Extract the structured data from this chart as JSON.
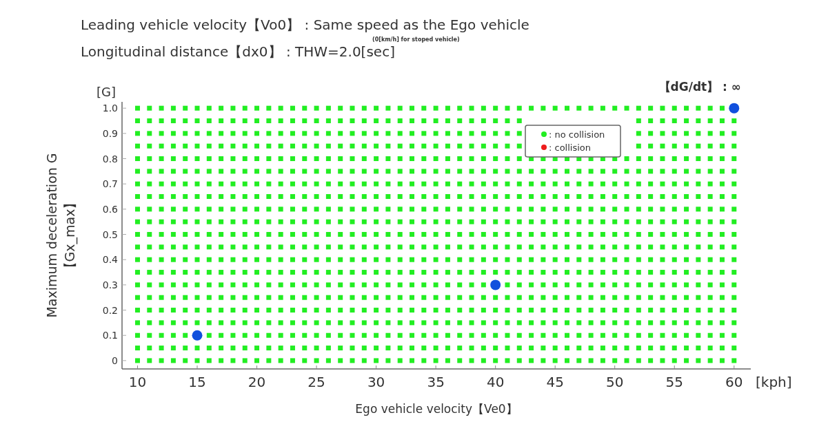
{
  "chart_data": {
    "type": "scatter",
    "title": "Leading vehicle velocity【Vo0】 : Same speed as the Ego vehicle",
    "subtitle": "Longitudinal distance【dx0】 : THW=2.0[sec]",
    "annotations": [
      "(0[km/h] for stoped vehicle)",
      "【dG/dt】 : ∞",
      "[G]",
      "[kph]"
    ],
    "xlabel": "Ego vehicle velocity【Ve0】",
    "ylabel": "Maximum deceleration G\n【Gx_max】",
    "x": [
      10,
      11,
      12,
      13,
      14,
      15,
      16,
      17,
      18,
      19,
      20,
      21,
      22,
      23,
      24,
      25,
      26,
      27,
      28,
      29,
      30,
      31,
      32,
      33,
      34,
      35,
      36,
      37,
      38,
      39,
      40,
      41,
      42,
      43,
      44,
      45,
      46,
      47,
      48,
      49,
      50,
      51,
      52,
      53,
      54,
      55,
      56,
      57,
      58,
      59,
      60
    ],
    "xlim": [
      8.7,
      61.4
    ],
    "xticks": [
      10,
      15,
      20,
      25,
      30,
      35,
      40,
      45,
      50,
      55,
      60
    ],
    "ylim": [
      -0.033,
      1.025
    ],
    "yticks": [
      {
        "value": 0,
        "label": "0"
      },
      0.1,
      0.2,
      0.3,
      0.4,
      0.5,
      0.6,
      0.7,
      0.8,
      0.9,
      {
        "value": 1.0,
        "label": "1.0"
      }
    ],
    "grid": false,
    "legend": "top right",
    "marker": "square",
    "series": [
      {
        "name": ": no collision",
        "color": "#22ee22",
        "values": [
          0,
          0,
          0,
          0,
          0,
          0,
          0,
          0,
          0,
          0,
          0,
          0,
          0,
          0,
          0,
          0,
          0,
          0,
          0,
          0,
          0,
          0,
          0,
          0,
          0,
          0,
          0,
          0,
          0,
          0,
          0,
          0,
          0,
          0,
          0,
          0,
          0,
          0,
          0,
          0,
          0,
          0,
          0,
          0,
          0,
          0,
          0,
          0,
          0,
          0,
          0
        ]
      },
      {
        "color": "#22ee22",
        "values": [
          0.05,
          0.05,
          0.05,
          0.05,
          0.05,
          0.05,
          0.05,
          0.05,
          0.05,
          0.05,
          0.05,
          0.05,
          0.05,
          0.05,
          0.05,
          0.05,
          0.05,
          0.05,
          0.05,
          0.05,
          0.05,
          0.05,
          0.05,
          0.05,
          0.05,
          0.05,
          0.05,
          0.05,
          0.05,
          0.05,
          0.05,
          0.05,
          0.05,
          0.05,
          0.05,
          0.05,
          0.05,
          0.05,
          0.05,
          0.05,
          0.05,
          0.05,
          0.05,
          0.05,
          0.05,
          0.05,
          0.05,
          0.05,
          0.05,
          0.05,
          0.05
        ]
      },
      {
        "color": "#22ee22",
        "values": [
          0.1,
          0.1,
          0.1,
          0.1,
          0.1,
          null,
          0.1,
          0.1,
          0.1,
          0.1,
          0.1,
          0.1,
          0.1,
          0.1,
          0.1,
          0.1,
          0.1,
          0.1,
          0.1,
          0.1,
          0.1,
          0.1,
          0.1,
          0.1,
          0.1,
          0.1,
          0.1,
          0.1,
          0.1,
          0.1,
          0.1,
          0.1,
          0.1,
          0.1,
          0.1,
          0.1,
          0.1,
          0.1,
          0.1,
          0.1,
          0.1,
          0.1,
          0.1,
          0.1,
          0.1,
          0.1,
          0.1,
          0.1,
          0.1,
          0.1,
          0.1
        ]
      },
      {
        "color": "#22ee22",
        "values": [
          0.15,
          0.15,
          0.15,
          0.15,
          0.15,
          0.15,
          0.15,
          0.15,
          0.15,
          0.15,
          0.15,
          0.15,
          0.15,
          0.15,
          0.15,
          0.15,
          0.15,
          0.15,
          0.15,
          0.15,
          0.15,
          0.15,
          0.15,
          0.15,
          0.15,
          0.15,
          0.15,
          0.15,
          0.15,
          0.15,
          0.15,
          0.15,
          0.15,
          0.15,
          0.15,
          0.15,
          0.15,
          0.15,
          0.15,
          0.15,
          0.15,
          0.15,
          0.15,
          0.15,
          0.15,
          0.15,
          0.15,
          0.15,
          0.15,
          0.15,
          0.15
        ]
      },
      {
        "color": "#22ee22",
        "values": [
          0.2,
          0.2,
          0.2,
          0.2,
          0.2,
          0.2,
          0.2,
          0.2,
          0.2,
          0.2,
          0.2,
          0.2,
          0.2,
          0.2,
          0.2,
          0.2,
          0.2,
          0.2,
          0.2,
          0.2,
          0.2,
          0.2,
          0.2,
          0.2,
          0.2,
          0.2,
          0.2,
          0.2,
          0.2,
          0.2,
          0.2,
          0.2,
          0.2,
          0.2,
          0.2,
          0.2,
          0.2,
          0.2,
          0.2,
          0.2,
          0.2,
          0.2,
          0.2,
          0.2,
          0.2,
          0.2,
          0.2,
          0.2,
          0.2,
          0.2,
          0.2
        ]
      },
      {
        "color": "#22ee22",
        "values": [
          0.25,
          0.25,
          0.25,
          0.25,
          0.25,
          0.25,
          0.25,
          0.25,
          0.25,
          0.25,
          0.25,
          0.25,
          0.25,
          0.25,
          0.25,
          0.25,
          0.25,
          0.25,
          0.25,
          0.25,
          0.25,
          0.25,
          0.25,
          0.25,
          0.25,
          0.25,
          0.25,
          0.25,
          0.25,
          0.25,
          0.25,
          0.25,
          0.25,
          0.25,
          0.25,
          0.25,
          0.25,
          0.25,
          0.25,
          0.25,
          0.25,
          0.25,
          0.25,
          0.25,
          0.25,
          0.25,
          0.25,
          0.25,
          0.25,
          0.25,
          0.25
        ]
      },
      {
        "color": "#22ee22",
        "values": [
          0.3,
          0.3,
          0.3,
          0.3,
          0.3,
          0.3,
          0.3,
          0.3,
          0.3,
          0.3,
          0.3,
          0.3,
          0.3,
          0.3,
          0.3,
          0.3,
          0.3,
          0.3,
          0.3,
          0.3,
          0.3,
          0.3,
          0.3,
          0.3,
          0.3,
          0.3,
          0.3,
          0.3,
          0.3,
          0.3,
          null,
          0.3,
          0.3,
          0.3,
          0.3,
          0.3,
          0.3,
          0.3,
          0.3,
          0.3,
          0.3,
          0.3,
          0.3,
          0.3,
          0.3,
          0.3,
          0.3,
          0.3,
          0.3,
          0.3,
          0.3
        ]
      },
      {
        "color": "#22ee22",
        "values": [
          0.35,
          0.35,
          0.35,
          0.35,
          0.35,
          0.35,
          0.35,
          0.35,
          0.35,
          0.35,
          0.35,
          0.35,
          0.35,
          0.35,
          0.35,
          0.35,
          0.35,
          0.35,
          0.35,
          0.35,
          0.35,
          0.35,
          0.35,
          0.35,
          0.35,
          0.35,
          0.35,
          0.35,
          0.35,
          0.35,
          0.35,
          0.35,
          0.35,
          0.35,
          0.35,
          0.35,
          0.35,
          0.35,
          0.35,
          0.35,
          0.35,
          0.35,
          0.35,
          0.35,
          0.35,
          0.35,
          0.35,
          0.35,
          0.35,
          0.35,
          0.35
        ]
      },
      {
        "color": "#22ee22",
        "values": [
          0.4,
          0.4,
          0.4,
          0.4,
          0.4,
          0.4,
          0.4,
          0.4,
          0.4,
          0.4,
          0.4,
          0.4,
          0.4,
          0.4,
          0.4,
          0.4,
          0.4,
          0.4,
          0.4,
          0.4,
          0.4,
          0.4,
          0.4,
          0.4,
          0.4,
          0.4,
          0.4,
          0.4,
          0.4,
          0.4,
          0.4,
          0.4,
          0.4,
          0.4,
          0.4,
          0.4,
          0.4,
          0.4,
          0.4,
          0.4,
          0.4,
          0.4,
          0.4,
          0.4,
          0.4,
          0.4,
          0.4,
          0.4,
          0.4,
          0.4,
          0.4
        ]
      },
      {
        "color": "#22ee22",
        "values": [
          0.45,
          0.45,
          0.45,
          0.45,
          0.45,
          0.45,
          0.45,
          0.45,
          0.45,
          0.45,
          0.45,
          0.45,
          0.45,
          0.45,
          0.45,
          0.45,
          0.45,
          0.45,
          0.45,
          0.45,
          0.45,
          0.45,
          0.45,
          0.45,
          0.45,
          0.45,
          0.45,
          0.45,
          0.45,
          0.45,
          0.45,
          0.45,
          0.45,
          0.45,
          0.45,
          0.45,
          0.45,
          0.45,
          0.45,
          0.45,
          0.45,
          0.45,
          0.45,
          0.45,
          0.45,
          0.45,
          0.45,
          0.45,
          0.45,
          0.45,
          0.45
        ]
      },
      {
        "color": "#22ee22",
        "values": [
          0.5,
          0.5,
          0.5,
          0.5,
          0.5,
          0.5,
          0.5,
          0.5,
          0.5,
          0.5,
          0.5,
          0.5,
          0.5,
          0.5,
          0.5,
          0.5,
          0.5,
          0.5,
          0.5,
          0.5,
          0.5,
          0.5,
          0.5,
          0.5,
          0.5,
          0.5,
          0.5,
          0.5,
          0.5,
          0.5,
          0.5,
          0.5,
          0.5,
          0.5,
          0.5,
          0.5,
          0.5,
          0.5,
          0.5,
          0.5,
          0.5,
          0.5,
          0.5,
          0.5,
          0.5,
          0.5,
          0.5,
          0.5,
          0.5,
          0.5,
          0.5
        ]
      },
      {
        "color": "#22ee22",
        "values": [
          0.55,
          0.55,
          0.55,
          0.55,
          0.55,
          0.55,
          0.55,
          0.55,
          0.55,
          0.55,
          0.55,
          0.55,
          0.55,
          0.55,
          0.55,
          0.55,
          0.55,
          0.55,
          0.55,
          0.55,
          0.55,
          0.55,
          0.55,
          0.55,
          0.55,
          0.55,
          0.55,
          0.55,
          0.55,
          0.55,
          0.55,
          0.55,
          0.55,
          0.55,
          0.55,
          0.55,
          0.55,
          0.55,
          0.55,
          0.55,
          0.55,
          0.55,
          0.55,
          0.55,
          0.55,
          0.55,
          0.55,
          0.55,
          0.55,
          0.55,
          0.55
        ]
      },
      {
        "color": "#22ee22",
        "values": [
          0.6,
          0.6,
          0.6,
          0.6,
          0.6,
          0.6,
          0.6,
          0.6,
          0.6,
          0.6,
          0.6,
          0.6,
          0.6,
          0.6,
          0.6,
          0.6,
          0.6,
          0.6,
          0.6,
          0.6,
          0.6,
          0.6,
          0.6,
          0.6,
          0.6,
          0.6,
          0.6,
          0.6,
          0.6,
          0.6,
          0.6,
          0.6,
          0.6,
          0.6,
          0.6,
          0.6,
          0.6,
          0.6,
          0.6,
          0.6,
          0.6,
          0.6,
          0.6,
          0.6,
          0.6,
          0.6,
          0.6,
          0.6,
          0.6,
          0.6,
          0.6
        ]
      },
      {
        "color": "#22ee22",
        "values": [
          0.65,
          0.65,
          0.65,
          0.65,
          0.65,
          0.65,
          0.65,
          0.65,
          0.65,
          0.65,
          0.65,
          0.65,
          0.65,
          0.65,
          0.65,
          0.65,
          0.65,
          0.65,
          0.65,
          0.65,
          0.65,
          0.65,
          0.65,
          0.65,
          0.65,
          0.65,
          0.65,
          0.65,
          0.65,
          0.65,
          0.65,
          0.65,
          0.65,
          0.65,
          0.65,
          0.65,
          0.65,
          0.65,
          0.65,
          0.65,
          0.65,
          0.65,
          0.65,
          0.65,
          0.65,
          0.65,
          0.65,
          0.65,
          0.65,
          0.65,
          0.65
        ]
      },
      {
        "color": "#22ee22",
        "values": [
          0.7,
          0.7,
          0.7,
          0.7,
          0.7,
          0.7,
          0.7,
          0.7,
          0.7,
          0.7,
          0.7,
          0.7,
          0.7,
          0.7,
          0.7,
          0.7,
          0.7,
          0.7,
          0.7,
          0.7,
          0.7,
          0.7,
          0.7,
          0.7,
          0.7,
          0.7,
          0.7,
          0.7,
          0.7,
          0.7,
          0.7,
          0.7,
          0.7,
          0.7,
          0.7,
          0.7,
          0.7,
          0.7,
          0.7,
          0.7,
          0.7,
          0.7,
          0.7,
          0.7,
          0.7,
          0.7,
          0.7,
          0.7,
          0.7,
          0.7,
          0.7
        ]
      },
      {
        "color": "#22ee22",
        "values": [
          0.75,
          0.75,
          0.75,
          0.75,
          0.75,
          0.75,
          0.75,
          0.75,
          0.75,
          0.75,
          0.75,
          0.75,
          0.75,
          0.75,
          0.75,
          0.75,
          0.75,
          0.75,
          0.75,
          0.75,
          0.75,
          0.75,
          0.75,
          0.75,
          0.75,
          0.75,
          0.75,
          0.75,
          0.75,
          0.75,
          0.75,
          0.75,
          0.75,
          0.75,
          0.75,
          0.75,
          0.75,
          0.75,
          0.75,
          0.75,
          0.75,
          0.75,
          0.75,
          0.75,
          0.75,
          0.75,
          0.75,
          0.75,
          0.75,
          0.75,
          0.75
        ]
      },
      {
        "color": "#22ee22",
        "values": [
          0.8,
          0.8,
          0.8,
          0.8,
          0.8,
          0.8,
          0.8,
          0.8,
          0.8,
          0.8,
          0.8,
          0.8,
          0.8,
          0.8,
          0.8,
          0.8,
          0.8,
          0.8,
          0.8,
          0.8,
          0.8,
          0.8,
          0.8,
          0.8,
          0.8,
          0.8,
          0.8,
          0.8,
          0.8,
          0.8,
          0.8,
          0.8,
          0.8,
          0.8,
          0.8,
          0.8,
          0.8,
          0.8,
          0.8,
          0.8,
          0.8,
          0.8,
          0.8,
          0.8,
          0.8,
          0.8,
          0.8,
          0.8,
          0.8,
          0.8,
          0.8
        ]
      },
      {
        "color": "#22ee22",
        "values": [
          0.85,
          0.85,
          0.85,
          0.85,
          0.85,
          0.85,
          0.85,
          0.85,
          0.85,
          0.85,
          0.85,
          0.85,
          0.85,
          0.85,
          0.85,
          0.85,
          0.85,
          0.85,
          0.85,
          0.85,
          0.85,
          0.85,
          0.85,
          0.85,
          0.85,
          0.85,
          0.85,
          0.85,
          0.85,
          0.85,
          0.85,
          0.85,
          0.85,
          null,
          null,
          null,
          null,
          null,
          null,
          null,
          null,
          null,
          0.85,
          0.85,
          0.85,
          0.85,
          0.85,
          0.85,
          0.85,
          0.85,
          0.85
        ]
      },
      {
        "color": "#22ee22",
        "values": [
          0.9,
          0.9,
          0.9,
          0.9,
          0.9,
          0.9,
          0.9,
          0.9,
          0.9,
          0.9,
          0.9,
          0.9,
          0.9,
          0.9,
          0.9,
          0.9,
          0.9,
          0.9,
          0.9,
          0.9,
          0.9,
          0.9,
          0.9,
          0.9,
          0.9,
          0.9,
          0.9,
          0.9,
          0.9,
          0.9,
          0.9,
          0.9,
          0.9,
          null,
          null,
          null,
          null,
          null,
          null,
          null,
          null,
          null,
          0.9,
          0.9,
          0.9,
          0.9,
          0.9,
          0.9,
          0.9,
          0.9,
          0.9
        ]
      },
      {
        "color": "#22ee22",
        "values": [
          0.95,
          0.95,
          0.95,
          0.95,
          0.95,
          0.95,
          0.95,
          0.95,
          0.95,
          0.95,
          0.95,
          0.95,
          0.95,
          0.95,
          0.95,
          0.95,
          0.95,
          0.95,
          0.95,
          0.95,
          0.95,
          0.95,
          0.95,
          0.95,
          0.95,
          0.95,
          0.95,
          0.95,
          0.95,
          0.95,
          0.95,
          0.95,
          0.95,
          null,
          null,
          null,
          null,
          null,
          null,
          null,
          null,
          null,
          0.95,
          0.95,
          0.95,
          0.95,
          0.95,
          0.95,
          0.95,
          0.95,
          0.95
        ]
      },
      {
        "color": "#22ee22",
        "values": [
          1.0,
          1.0,
          1.0,
          1.0,
          1.0,
          1.0,
          1.0,
          1.0,
          1.0,
          1.0,
          1.0,
          1.0,
          1.0,
          1.0,
          1.0,
          1.0,
          1.0,
          1.0,
          1.0,
          1.0,
          1.0,
          1.0,
          1.0,
          1.0,
          1.0,
          1.0,
          1.0,
          1.0,
          1.0,
          1.0,
          1.0,
          1.0,
          1.0,
          1.0,
          1.0,
          1.0,
          1.0,
          1.0,
          1.0,
          1.0,
          1.0,
          1.0,
          1.0,
          1.0,
          1.0,
          1.0,
          1.0,
          1.0,
          1.0,
          1.0,
          null
        ]
      },
      {
        "name": ": collision",
        "color": "#ee1c1c",
        "marker": "circle",
        "values": [
          null,
          null,
          null,
          null,
          null,
          null,
          null,
          null,
          null,
          null,
          null,
          null,
          null,
          null,
          null,
          null,
          null,
          null,
          null,
          null,
          null,
          null,
          null,
          null,
          null,
          null,
          null,
          null,
          null,
          null,
          null,
          null,
          null,
          null,
          null,
          null,
          null,
          null,
          null,
          null,
          null,
          null,
          null,
          null,
          null,
          null,
          null,
          null,
          null,
          null,
          null
        ]
      },
      {
        "color": "#1150dd",
        "marker": "circle",
        "x": [
          15,
          40,
          60
        ],
        "values": [
          0.1,
          0.3,
          1.0
        ]
      }
    ]
  }
}
